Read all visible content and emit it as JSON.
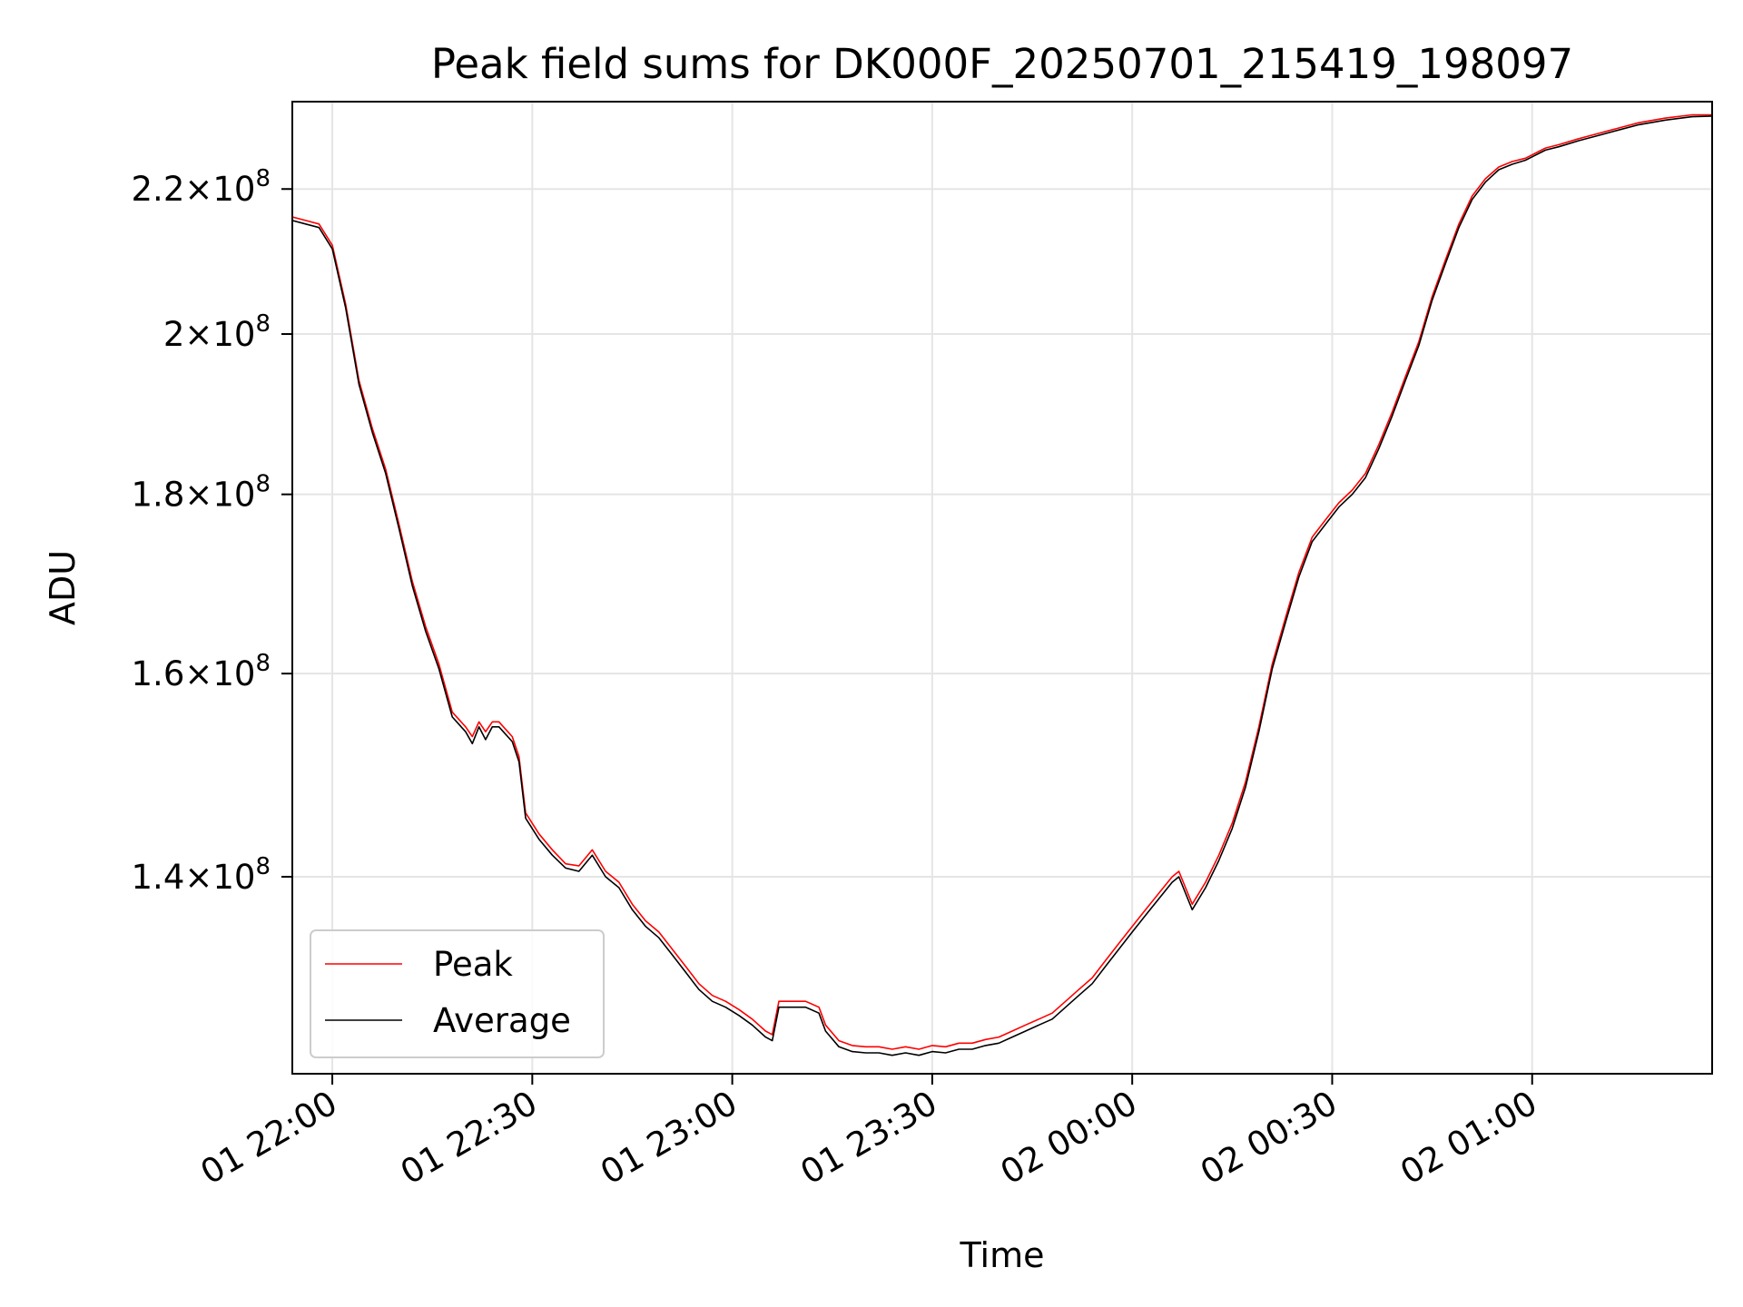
{
  "chart_data": {
    "type": "line",
    "title": "Peak field sums for DK000F_20250701_215419_198097",
    "xlabel": "Time",
    "ylabel": "ADU",
    "y_scale": "log",
    "grid": true,
    "legend_position": "lower-left",
    "xlim": [
      "2025-07-01 21:54",
      "2025-07-02 01:27"
    ],
    "ylim": [
      123000000.0,
      233000000.0
    ],
    "x_ticks": [
      {
        "value": "2025-07-01 22:00",
        "label": "01 22:00"
      },
      {
        "value": "2025-07-01 22:30",
        "label": "01 22:30"
      },
      {
        "value": "2025-07-01 23:00",
        "label": "01 23:00"
      },
      {
        "value": "2025-07-01 23:30",
        "label": "01 23:30"
      },
      {
        "value": "2025-07-02 00:00",
        "label": "02 00:00"
      },
      {
        "value": "2025-07-02 00:30",
        "label": "02 00:30"
      },
      {
        "value": "2025-07-02 01:00",
        "label": "02 01:00"
      }
    ],
    "y_ticks": [
      {
        "value": 140000000,
        "mantissa": "1.4",
        "exponent": "8"
      },
      {
        "value": 160000000,
        "mantissa": "1.6",
        "exponent": "8"
      },
      {
        "value": 180000000,
        "mantissa": "1.8",
        "exponent": "8"
      },
      {
        "value": 200000000,
        "mantissa": "2",
        "exponent": "8"
      },
      {
        "value": 220000000,
        "mantissa": "2.2",
        "exponent": "8"
      }
    ],
    "tick_times_label": "×10",
    "series": [
      {
        "name": "Peak",
        "color": "#ff0000",
        "points": [
          [
            "2025-07-01 21:54",
            216000000.0
          ],
          [
            "2025-07-01 21:56",
            215500000.0
          ],
          [
            "2025-07-01 21:58",
            215000000.0
          ],
          [
            "2025-07-01 22:00",
            212000000.0
          ],
          [
            "2025-07-01 22:02",
            204000000.0
          ],
          [
            "2025-07-01 22:04",
            194000000.0
          ],
          [
            "2025-07-01 22:06",
            188000000.0
          ],
          [
            "2025-07-01 22:08",
            183000000.0
          ],
          [
            "2025-07-01 22:10",
            176500000.0
          ],
          [
            "2025-07-01 22:12",
            170000000.0
          ],
          [
            "2025-07-01 22:14",
            165000000.0
          ],
          [
            "2025-07-01 22:16",
            161000000.0
          ],
          [
            "2025-07-01 22:18",
            156000000.0
          ],
          [
            "2025-07-01 22:20",
            154500000.0
          ],
          [
            "2025-07-01 22:21",
            153500000.0
          ],
          [
            "2025-07-01 22:22",
            155000000.0
          ],
          [
            "2025-07-01 22:23",
            154000000.0
          ],
          [
            "2025-07-01 22:24",
            155000000.0
          ],
          [
            "2025-07-01 22:25",
            155000000.0
          ],
          [
            "2025-07-01 22:27",
            153500000.0
          ],
          [
            "2025-07-01 22:28",
            151500000.0
          ],
          [
            "2025-07-01 22:29",
            146000000.0
          ],
          [
            "2025-07-01 22:31",
            144000000.0
          ],
          [
            "2025-07-01 22:33",
            142500000.0
          ],
          [
            "2025-07-01 22:35",
            141200000.0
          ],
          [
            "2025-07-01 22:37",
            141000000.0
          ],
          [
            "2025-07-01 22:39",
            142500000.0
          ],
          [
            "2025-07-01 22:41",
            140500000.0
          ],
          [
            "2025-07-01 22:43",
            139500000.0
          ],
          [
            "2025-07-01 22:45",
            137500000.0
          ],
          [
            "2025-07-01 22:47",
            136000000.0
          ],
          [
            "2025-07-01 22:49",
            135000000.0
          ],
          [
            "2025-07-01 22:51",
            133500000.0
          ],
          [
            "2025-07-01 22:53",
            132000000.0
          ],
          [
            "2025-07-01 22:55",
            130500000.0
          ],
          [
            "2025-07-01 22:57",
            129500000.0
          ],
          [
            "2025-07-01 22:59",
            129000000.0
          ],
          [
            "2025-07-01 23:01",
            128300000.0
          ],
          [
            "2025-07-01 23:03",
            127500000.0
          ],
          [
            "2025-07-01 23:05",
            126500000.0
          ],
          [
            "2025-07-01 23:06",
            126200000.0
          ],
          [
            "2025-07-01 23:07",
            129000000.0
          ],
          [
            "2025-07-01 23:09",
            129000000.0
          ],
          [
            "2025-07-01 23:11",
            129000000.0
          ],
          [
            "2025-07-01 23:13",
            128500000.0
          ],
          [
            "2025-07-01 23:14",
            127000000.0
          ],
          [
            "2025-07-01 23:16",
            125700000.0
          ],
          [
            "2025-07-01 23:18",
            125300000.0
          ],
          [
            "2025-07-01 23:20",
            125200000.0
          ],
          [
            "2025-07-01 23:22",
            125200000.0
          ],
          [
            "2025-07-01 23:24",
            125000000.0
          ],
          [
            "2025-07-01 23:26",
            125200000.0
          ],
          [
            "2025-07-01 23:28",
            125000000.0
          ],
          [
            "2025-07-01 23:30",
            125300000.0
          ],
          [
            "2025-07-01 23:32",
            125200000.0
          ],
          [
            "2025-07-01 23:34",
            125500000.0
          ],
          [
            "2025-07-01 23:36",
            125500000.0
          ],
          [
            "2025-07-01 23:38",
            125800000.0
          ],
          [
            "2025-07-01 23:40",
            126000000.0
          ],
          [
            "2025-07-01 23:42",
            126500000.0
          ],
          [
            "2025-07-01 23:44",
            127000000.0
          ],
          [
            "2025-07-01 23:46",
            127500000.0
          ],
          [
            "2025-07-01 23:48",
            128000000.0
          ],
          [
            "2025-07-01 23:50",
            129000000.0
          ],
          [
            "2025-07-01 23:52",
            130000000.0
          ],
          [
            "2025-07-01 23:54",
            131000000.0
          ],
          [
            "2025-07-01 23:56",
            132500000.0
          ],
          [
            "2025-07-01 23:58",
            134000000.0
          ],
          [
            "2025-07-02 00:00",
            135500000.0
          ],
          [
            "2025-07-02 00:02",
            137000000.0
          ],
          [
            "2025-07-02 00:04",
            138500000.0
          ],
          [
            "2025-07-02 00:06",
            140000000.0
          ],
          [
            "2025-07-02 00:07",
            140500000.0
          ],
          [
            "2025-07-02 00:09",
            137500000.0
          ],
          [
            "2025-07-02 00:11",
            139500000.0
          ],
          [
            "2025-07-02 00:13",
            142000000.0
          ],
          [
            "2025-07-02 00:15",
            145000000.0
          ],
          [
            "2025-07-02 00:17",
            149000000.0
          ],
          [
            "2025-07-02 00:19",
            154500000.0
          ],
          [
            "2025-07-02 00:21",
            161000000.0
          ],
          [
            "2025-07-02 00:23",
            166000000.0
          ],
          [
            "2025-07-02 00:25",
            171000000.0
          ],
          [
            "2025-07-02 00:27",
            175000000.0
          ],
          [
            "2025-07-02 00:29",
            177000000.0
          ],
          [
            "2025-07-02 00:31",
            179000000.0
          ],
          [
            "2025-07-02 00:33",
            180500000.0
          ],
          [
            "2025-07-02 00:35",
            182500000.0
          ],
          [
            "2025-07-02 00:37",
            186000000.0
          ],
          [
            "2025-07-02 00:39",
            190000000.0
          ],
          [
            "2025-07-02 00:41",
            194500000.0
          ],
          [
            "2025-07-02 00:43",
            199000000.0
          ],
          [
            "2025-07-02 00:45",
            205000000.0
          ],
          [
            "2025-07-02 00:47",
            210000000.0
          ],
          [
            "2025-07-02 00:49",
            215000000.0
          ],
          [
            "2025-07-02 00:51",
            219000000.0
          ],
          [
            "2025-07-02 00:53",
            221500000.0
          ],
          [
            "2025-07-02 00:55",
            223200000.0
          ],
          [
            "2025-07-02 00:57",
            224000000.0
          ],
          [
            "2025-07-02 00:59",
            224500000.0
          ],
          [
            "2025-07-02 01:00",
            225000000.0
          ],
          [
            "2025-07-02 01:02",
            226000000.0
          ],
          [
            "2025-07-02 01:04",
            226500000.0
          ],
          [
            "2025-07-02 01:07",
            227400000.0
          ],
          [
            "2025-07-02 01:10",
            228200000.0
          ],
          [
            "2025-07-02 01:13",
            229000000.0
          ],
          [
            "2025-07-02 01:16",
            229800000.0
          ],
          [
            "2025-07-02 01:20",
            230500000.0
          ],
          [
            "2025-07-02 01:24",
            231000000.0
          ],
          [
            "2025-07-02 01:27",
            231000000.0
          ]
        ]
      },
      {
        "name": "Average",
        "color": "#000000",
        "points": [
          [
            "2025-07-01 21:54",
            215500000.0
          ],
          [
            "2025-07-01 21:56",
            215000000.0
          ],
          [
            "2025-07-01 21:58",
            214500000.0
          ],
          [
            "2025-07-01 22:00",
            211500000.0
          ],
          [
            "2025-07-01 22:02",
            203500000.0
          ],
          [
            "2025-07-01 22:04",
            193500000.0
          ],
          [
            "2025-07-01 22:06",
            187500000.0
          ],
          [
            "2025-07-01 22:08",
            182500000.0
          ],
          [
            "2025-07-01 22:10",
            176000000.0
          ],
          [
            "2025-07-01 22:12",
            169500000.0
          ],
          [
            "2025-07-01 22:14",
            164500000.0
          ],
          [
            "2025-07-01 22:16",
            160500000.0
          ],
          [
            "2025-07-01 22:18",
            155500000.0
          ],
          [
            "2025-07-01 22:20",
            154000000.0
          ],
          [
            "2025-07-01 22:21",
            152800000.0
          ],
          [
            "2025-07-01 22:22",
            154500000.0
          ],
          [
            "2025-07-01 22:23",
            153200000.0
          ],
          [
            "2025-07-01 22:24",
            154500000.0
          ],
          [
            "2025-07-01 22:25",
            154500000.0
          ],
          [
            "2025-07-01 22:27",
            153000000.0
          ],
          [
            "2025-07-01 22:28",
            151000000.0
          ],
          [
            "2025-07-01 22:29",
            145500000.0
          ],
          [
            "2025-07-01 22:31",
            143500000.0
          ],
          [
            "2025-07-01 22:33",
            142000000.0
          ],
          [
            "2025-07-01 22:35",
            140800000.0
          ],
          [
            "2025-07-01 22:37",
            140500000.0
          ],
          [
            "2025-07-01 22:39",
            142000000.0
          ],
          [
            "2025-07-01 22:41",
            140000000.0
          ],
          [
            "2025-07-01 22:43",
            139000000.0
          ],
          [
            "2025-07-01 22:45",
            137000000.0
          ],
          [
            "2025-07-01 22:47",
            135500000.0
          ],
          [
            "2025-07-01 22:49",
            134500000.0
          ],
          [
            "2025-07-01 22:51",
            133000000.0
          ],
          [
            "2025-07-01 22:53",
            131500000.0
          ],
          [
            "2025-07-01 22:55",
            130000000.0
          ],
          [
            "2025-07-01 22:57",
            129000000.0
          ],
          [
            "2025-07-01 22:59",
            128500000.0
          ],
          [
            "2025-07-01 23:01",
            127800000.0
          ],
          [
            "2025-07-01 23:03",
            127000000.0
          ],
          [
            "2025-07-01 23:05",
            126000000.0
          ],
          [
            "2025-07-01 23:06",
            125700000.0
          ],
          [
            "2025-07-01 23:07",
            128500000.0
          ],
          [
            "2025-07-01 23:09",
            128500000.0
          ],
          [
            "2025-07-01 23:11",
            128500000.0
          ],
          [
            "2025-07-01 23:13",
            128000000.0
          ],
          [
            "2025-07-01 23:14",
            126500000.0
          ],
          [
            "2025-07-01 23:16",
            125200000.0
          ],
          [
            "2025-07-01 23:18",
            124800000.0
          ],
          [
            "2025-07-01 23:20",
            124700000.0
          ],
          [
            "2025-07-01 23:22",
            124700000.0
          ],
          [
            "2025-07-01 23:24",
            124500000.0
          ],
          [
            "2025-07-01 23:26",
            124700000.0
          ],
          [
            "2025-07-01 23:28",
            124500000.0
          ],
          [
            "2025-07-01 23:30",
            124800000.0
          ],
          [
            "2025-07-01 23:32",
            124700000.0
          ],
          [
            "2025-07-01 23:34",
            125000000.0
          ],
          [
            "2025-07-01 23:36",
            125000000.0
          ],
          [
            "2025-07-01 23:38",
            125300000.0
          ],
          [
            "2025-07-01 23:40",
            125500000.0
          ],
          [
            "2025-07-01 23:42",
            126000000.0
          ],
          [
            "2025-07-01 23:44",
            126500000.0
          ],
          [
            "2025-07-01 23:46",
            127000000.0
          ],
          [
            "2025-07-01 23:48",
            127500000.0
          ],
          [
            "2025-07-01 23:50",
            128500000.0
          ],
          [
            "2025-07-01 23:52",
            129500000.0
          ],
          [
            "2025-07-01 23:54",
            130500000.0
          ],
          [
            "2025-07-01 23:56",
            132000000.0
          ],
          [
            "2025-07-01 23:58",
            133500000.0
          ],
          [
            "2025-07-02 00:00",
            135000000.0
          ],
          [
            "2025-07-02 00:02",
            136500000.0
          ],
          [
            "2025-07-02 00:04",
            138000000.0
          ],
          [
            "2025-07-02 00:06",
            139500000.0
          ],
          [
            "2025-07-02 00:07",
            140000000.0
          ],
          [
            "2025-07-02 00:09",
            137000000.0
          ],
          [
            "2025-07-02 00:11",
            139000000.0
          ],
          [
            "2025-07-02 00:13",
            141500000.0
          ],
          [
            "2025-07-02 00:15",
            144500000.0
          ],
          [
            "2025-07-02 00:17",
            148500000.0
          ],
          [
            "2025-07-02 00:19",
            154000000.0
          ],
          [
            "2025-07-02 00:21",
            160500000.0
          ],
          [
            "2025-07-02 00:23",
            165500000.0
          ],
          [
            "2025-07-02 00:25",
            170500000.0
          ],
          [
            "2025-07-02 00:27",
            174500000.0
          ],
          [
            "2025-07-02 00:29",
            176500000.0
          ],
          [
            "2025-07-02 00:31",
            178500000.0
          ],
          [
            "2025-07-02 00:33",
            180000000.0
          ],
          [
            "2025-07-02 00:35",
            182000000.0
          ],
          [
            "2025-07-02 00:37",
            185500000.0
          ],
          [
            "2025-07-02 00:39",
            189500000.0
          ],
          [
            "2025-07-02 00:41",
            194000000.0
          ],
          [
            "2025-07-02 00:43",
            198500000.0
          ],
          [
            "2025-07-02 00:45",
            204500000.0
          ],
          [
            "2025-07-02 00:47",
            209500000.0
          ],
          [
            "2025-07-02 00:49",
            214500000.0
          ],
          [
            "2025-07-02 00:51",
            218500000.0
          ],
          [
            "2025-07-02 00:53",
            221000000.0
          ],
          [
            "2025-07-02 00:55",
            222800000.0
          ],
          [
            "2025-07-02 00:57",
            223600000.0
          ],
          [
            "2025-07-02 00:59",
            224200000.0
          ],
          [
            "2025-07-02 01:00",
            224700000.0
          ],
          [
            "2025-07-02 01:02",
            225700000.0
          ],
          [
            "2025-07-02 01:04",
            226200000.0
          ],
          [
            "2025-07-02 01:07",
            227100000.0
          ],
          [
            "2025-07-02 01:10",
            227900000.0
          ],
          [
            "2025-07-02 01:13",
            228700000.0
          ],
          [
            "2025-07-02 01:16",
            229500000.0
          ],
          [
            "2025-07-02 01:20",
            230200000.0
          ],
          [
            "2025-07-02 01:24",
            230700000.0
          ],
          [
            "2025-07-02 01:27",
            230800000.0
          ]
        ]
      }
    ]
  }
}
